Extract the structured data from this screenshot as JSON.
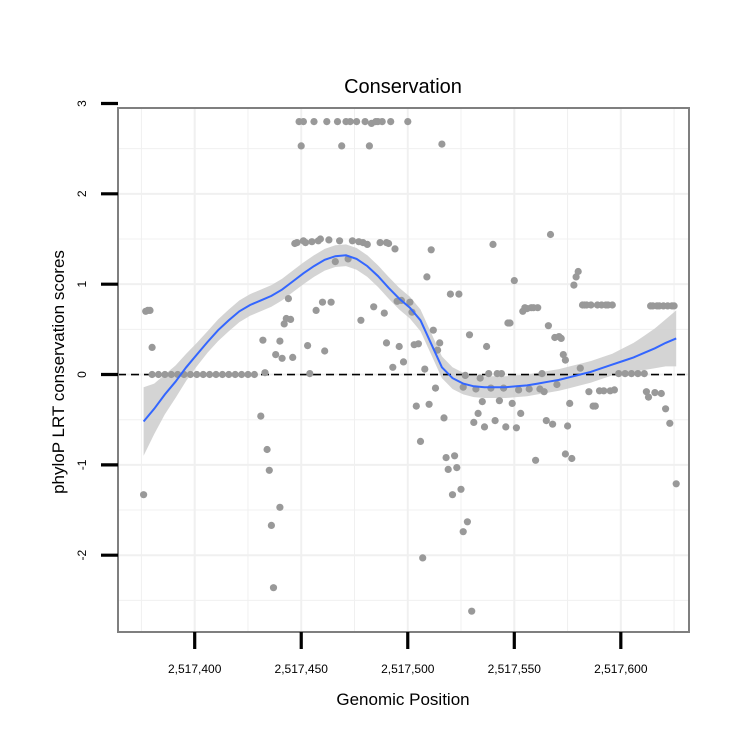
{
  "chart_data": {
    "type": "scatter",
    "title": "Conservation",
    "xlabel": "Genomic Position",
    "ylabel": "phyloP LRT conservation scores",
    "xlim": [
      2517364,
      2517632
    ],
    "ylim": [
      -2.85,
      2.95
    ],
    "x_ticks": [
      2517400,
      2517450,
      2517500,
      2517550,
      2517600
    ],
    "x_tick_labels": [
      "2,517,400",
      "2,517,450",
      "2,517,500",
      "2,517,550",
      "2,517,600"
    ],
    "y_ticks": [
      -2,
      -1,
      0,
      1,
      2,
      3
    ],
    "y_tick_labels": [
      "-2",
      "-1",
      "0",
      "1",
      "2",
      "3"
    ],
    "grid": true,
    "reference_line": {
      "y": 0,
      "style": "dashed"
    },
    "colors": {
      "points": "#999999",
      "smooth_line": "#3366ff",
      "confidence_band": "#cccccc",
      "panel_border": "#7f7f7f",
      "grid": "#f0f0f0"
    },
    "points": [
      [
        2517376,
        -1.33
      ],
      [
        2517377,
        0.7
      ],
      [
        2517378,
        0.71
      ],
      [
        2517379,
        0.71
      ],
      [
        2517380,
        0.3
      ],
      [
        2517380,
        0.0
      ],
      [
        2517383,
        0.0
      ],
      [
        2517386,
        0.0
      ],
      [
        2517389,
        0.0
      ],
      [
        2517392,
        0.0
      ],
      [
        2517395,
        0.0
      ],
      [
        2517398,
        0.0
      ],
      [
        2517401,
        0.0
      ],
      [
        2517404,
        0.0
      ],
      [
        2517407,
        0.0
      ],
      [
        2517410,
        0.0
      ],
      [
        2517413,
        0.0
      ],
      [
        2517416,
        0.0
      ],
      [
        2517419,
        0.0
      ],
      [
        2517422,
        0.0
      ],
      [
        2517425,
        0.0
      ],
      [
        2517428,
        0.0
      ],
      [
        2517431,
        -0.46
      ],
      [
        2517432,
        0.38
      ],
      [
        2517433,
        0.02
      ],
      [
        2517434,
        -0.83
      ],
      [
        2517435,
        -1.06
      ],
      [
        2517436,
        -1.67
      ],
      [
        2517437,
        -2.36
      ],
      [
        2517438,
        0.22
      ],
      [
        2517440,
        -1.47
      ],
      [
        2517440,
        0.37
      ],
      [
        2517441,
        0.18
      ],
      [
        2517442,
        0.56
      ],
      [
        2517443,
        0.62
      ],
      [
        2517444,
        0.84
      ],
      [
        2517445,
        0.61
      ],
      [
        2517446,
        0.19
      ],
      [
        2517447,
        1.45
      ],
      [
        2517448,
        1.46
      ],
      [
        2517449,
        2.8
      ],
      [
        2517450,
        2.53
      ],
      [
        2517451,
        2.8
      ],
      [
        2517451,
        1.48
      ],
      [
        2517452,
        1.46
      ],
      [
        2517453,
        0.32
      ],
      [
        2517454,
        0.01
      ],
      [
        2517455,
        1.47
      ],
      [
        2517456,
        2.8
      ],
      [
        2517457,
        0.71
      ],
      [
        2517458,
        1.48
      ],
      [
        2517459,
        1.5
      ],
      [
        2517460,
        0.8
      ],
      [
        2517461,
        0.26
      ],
      [
        2517462,
        2.8
      ],
      [
        2517463,
        1.49
      ],
      [
        2517464,
        0.8
      ],
      [
        2517466,
        1.25
      ],
      [
        2517467,
        2.8
      ],
      [
        2517468,
        1.48
      ],
      [
        2517469,
        2.53
      ],
      [
        2517471,
        2.8
      ],
      [
        2517472,
        1.28
      ],
      [
        2517473,
        2.8
      ],
      [
        2517474,
        1.48
      ],
      [
        2517476,
        2.8
      ],
      [
        2517477,
        1.47
      ],
      [
        2517478,
        0.6
      ],
      [
        2517479,
        1.46
      ],
      [
        2517480,
        2.8
      ],
      [
        2517481,
        1.44
      ],
      [
        2517482,
        2.53
      ],
      [
        2517483,
        2.78
      ],
      [
        2517484,
        0.75
      ],
      [
        2517485,
        2.8
      ],
      [
        2517486,
        2.8
      ],
      [
        2517487,
        1.46
      ],
      [
        2517488,
        2.8
      ],
      [
        2517489,
        0.68
      ],
      [
        2517490,
        1.46
      ],
      [
        2517490,
        0.35
      ],
      [
        2517491,
        1.45
      ],
      [
        2517492,
        2.8
      ],
      [
        2517493,
        0.08
      ],
      [
        2517494,
        1.39
      ],
      [
        2517495,
        0.81
      ],
      [
        2517496,
        0.31
      ],
      [
        2517497,
        0.82
      ],
      [
        2517498,
        0.14
      ],
      [
        2517500,
        2.8
      ],
      [
        2517501,
        0.8
      ],
      [
        2517502,
        0.69
      ],
      [
        2517503,
        0.33
      ],
      [
        2517504,
        -0.35
      ],
      [
        2517505,
        0.34
      ],
      [
        2517506,
        -0.74
      ],
      [
        2517507,
        -2.03
      ],
      [
        2517508,
        0.06
      ],
      [
        2517509,
        1.08
      ],
      [
        2517510,
        -0.33
      ],
      [
        2517511,
        1.38
      ],
      [
        2517512,
        0.49
      ],
      [
        2517513,
        -0.15
      ],
      [
        2517514,
        0.27
      ],
      [
        2517515,
        0.35
      ],
      [
        2517516,
        2.55
      ],
      [
        2517517,
        -0.48
      ],
      [
        2517518,
        -0.92
      ],
      [
        2517519,
        -1.05
      ],
      [
        2517520,
        0.89
      ],
      [
        2517521,
        -1.33
      ],
      [
        2517522,
        -0.9
      ],
      [
        2517523,
        -1.03
      ],
      [
        2517524,
        0.89
      ],
      [
        2517525,
        -1.27
      ],
      [
        2517526,
        -0.14
      ],
      [
        2517526,
        -1.74
      ],
      [
        2517527,
        -0.01
      ],
      [
        2517528,
        -1.63
      ],
      [
        2517529,
        0.44
      ],
      [
        2517530,
        -2.62
      ],
      [
        2517531,
        -0.53
      ],
      [
        2517532,
        -0.16
      ],
      [
        2517533,
        -0.43
      ],
      [
        2517534,
        -0.04
      ],
      [
        2517535,
        -0.3
      ],
      [
        2517536,
        -0.58
      ],
      [
        2517537,
        0.31
      ],
      [
        2517538,
        0.01
      ],
      [
        2517539,
        -0.15
      ],
      [
        2517540,
        1.44
      ],
      [
        2517541,
        -0.51
      ],
      [
        2517542,
        0.01
      ],
      [
        2517543,
        -0.29
      ],
      [
        2517544,
        0.01
      ],
      [
        2517545,
        -0.15
      ],
      [
        2517546,
        -0.58
      ],
      [
        2517547,
        0.57
      ],
      [
        2517548,
        0.57
      ],
      [
        2517549,
        -0.32
      ],
      [
        2517550,
        1.04
      ],
      [
        2517551,
        -0.59
      ],
      [
        2517552,
        -0.17
      ],
      [
        2517553,
        -0.43
      ],
      [
        2517554,
        0.7
      ],
      [
        2517555,
        0.74
      ],
      [
        2517556,
        0.73
      ],
      [
        2517557,
        -0.16
      ],
      [
        2517558,
        0.74
      ],
      [
        2517559,
        0.74
      ],
      [
        2517560,
        -0.95
      ],
      [
        2517561,
        0.74
      ],
      [
        2517562,
        -0.16
      ],
      [
        2517563,
        0.01
      ],
      [
        2517564,
        -0.19
      ],
      [
        2517565,
        -0.51
      ],
      [
        2517566,
        0.54
      ],
      [
        2517567,
        1.55
      ],
      [
        2517568,
        -0.55
      ],
      [
        2517569,
        0.41
      ],
      [
        2517570,
        -0.11
      ],
      [
        2517571,
        0.42
      ],
      [
        2517572,
        0.4
      ],
      [
        2517573,
        0.22
      ],
      [
        2517574,
        0.16
      ],
      [
        2517574,
        -0.88
      ],
      [
        2517575,
        -0.57
      ],
      [
        2517576,
        -0.32
      ],
      [
        2517577,
        -0.93
      ],
      [
        2517578,
        0.99
      ],
      [
        2517579,
        1.08
      ],
      [
        2517580,
        1.14
      ],
      [
        2517581,
        0.07
      ],
      [
        2517582,
        0.77
      ],
      [
        2517583,
        0.77
      ],
      [
        2517584,
        0.77
      ],
      [
        2517585,
        -0.19
      ],
      [
        2517586,
        0.77
      ],
      [
        2517587,
        -0.35
      ],
      [
        2517588,
        -0.35
      ],
      [
        2517589,
        0.77
      ],
      [
        2517590,
        -0.18
      ],
      [
        2517591,
        0.77
      ],
      [
        2517592,
        -0.18
      ],
      [
        2517593,
        0.77
      ],
      [
        2517594,
        0.77
      ],
      [
        2517595,
        -0.18
      ],
      [
        2517596,
        0.77
      ],
      [
        2517597,
        -0.17
      ],
      [
        2517599,
        0.01
      ],
      [
        2517602,
        0.01
      ],
      [
        2517605,
        0.01
      ],
      [
        2517608,
        0.01
      ],
      [
        2517611,
        0.01
      ],
      [
        2517612,
        -0.19
      ],
      [
        2517613,
        -0.25
      ],
      [
        2517614,
        0.76
      ],
      [
        2517615,
        0.76
      ],
      [
        2517616,
        -0.2
      ],
      [
        2517617,
        0.76
      ],
      [
        2517618,
        0.76
      ],
      [
        2517619,
        -0.21
      ],
      [
        2517620,
        0.76
      ],
      [
        2517621,
        -0.38
      ],
      [
        2517622,
        0.76
      ],
      [
        2517623,
        -0.54
      ],
      [
        2517624,
        0.76
      ],
      [
        2517625,
        0.76
      ],
      [
        2517626,
        -1.21
      ]
    ],
    "smooth": [
      [
        2517376,
        -0.52,
        0.38
      ],
      [
        2517381,
        -0.38,
        0.28
      ],
      [
        2517386,
        -0.22,
        0.22
      ],
      [
        2517391,
        -0.08,
        0.18
      ],
      [
        2517396,
        0.08,
        0.15
      ],
      [
        2517401,
        0.22,
        0.13
      ],
      [
        2517406,
        0.36,
        0.12
      ],
      [
        2517411,
        0.49,
        0.12
      ],
      [
        2517416,
        0.6,
        0.12
      ],
      [
        2517421,
        0.7,
        0.12
      ],
      [
        2517426,
        0.77,
        0.12
      ],
      [
        2517431,
        0.82,
        0.12
      ],
      [
        2517436,
        0.87,
        0.12
      ],
      [
        2517441,
        0.94,
        0.12
      ],
      [
        2517446,
        1.03,
        0.12
      ],
      [
        2517451,
        1.12,
        0.12
      ],
      [
        2517456,
        1.2,
        0.12
      ],
      [
        2517461,
        1.27,
        0.12
      ],
      [
        2517466,
        1.31,
        0.12
      ],
      [
        2517471,
        1.32,
        0.12
      ],
      [
        2517476,
        1.28,
        0.12
      ],
      [
        2517481,
        1.2,
        0.12
      ],
      [
        2517486,
        1.09,
        0.12
      ],
      [
        2517491,
        0.96,
        0.12
      ],
      [
        2517496,
        0.84,
        0.12
      ],
      [
        2517501,
        0.74,
        0.12
      ],
      [
        2517506,
        0.6,
        0.12
      ],
      [
        2517511,
        0.34,
        0.12
      ],
      [
        2517516,
        0.08,
        0.12
      ],
      [
        2517521,
        -0.04,
        0.12
      ],
      [
        2517526,
        -0.1,
        0.12
      ],
      [
        2517531,
        -0.13,
        0.12
      ],
      [
        2517536,
        -0.14,
        0.12
      ],
      [
        2517541,
        -0.14,
        0.12
      ],
      [
        2517546,
        -0.14,
        0.12
      ],
      [
        2517551,
        -0.13,
        0.12
      ],
      [
        2517556,
        -0.12,
        0.12
      ],
      [
        2517561,
        -0.1,
        0.12
      ],
      [
        2517566,
        -0.08,
        0.12
      ],
      [
        2517571,
        -0.06,
        0.12
      ],
      [
        2517576,
        -0.03,
        0.12
      ],
      [
        2517581,
        0.0,
        0.12
      ],
      [
        2517586,
        0.03,
        0.12
      ],
      [
        2517591,
        0.07,
        0.12
      ],
      [
        2517596,
        0.11,
        0.12
      ],
      [
        2517601,
        0.15,
        0.14
      ],
      [
        2517606,
        0.19,
        0.16
      ],
      [
        2517611,
        0.24,
        0.19
      ],
      [
        2517616,
        0.29,
        0.22
      ],
      [
        2517621,
        0.35,
        0.26
      ],
      [
        2517626,
        0.4,
        0.31
      ]
    ]
  }
}
